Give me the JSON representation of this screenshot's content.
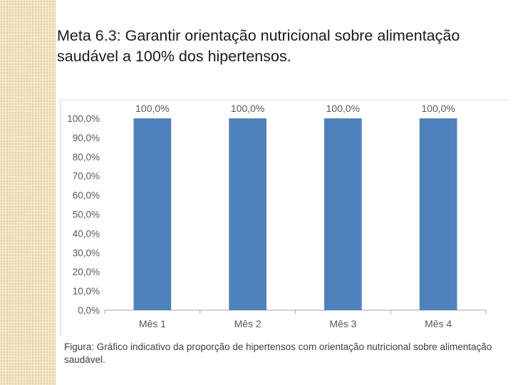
{
  "title": {
    "bold": "Meta 6.3",
    "rest": ": Garantir orientação nutricional sobre alimentação saudável a 100% dos hipertensos."
  },
  "caption": "Figura: Gráfico indicativo da proporção de hipertensos com orientação nutricional sobre alimentação saudável.",
  "colors": {
    "bar": "#4f81bd",
    "axis": "#a6a6a6",
    "text": "#595959"
  },
  "chart_data": {
    "type": "bar",
    "categories": [
      "Mês 1",
      "Mês 2",
      "Mês 3",
      "Mês 4"
    ],
    "values": [
      100.0,
      100.0,
      100.0,
      100.0
    ],
    "value_labels": [
      "100,0%",
      "100,0%",
      "100,0%",
      "100,0%"
    ],
    "y_ticks": [
      "0,0%",
      "10,0%",
      "20,0%",
      "30,0%",
      "40,0%",
      "50,0%",
      "60,0%",
      "70,0%",
      "80,0%",
      "90,0%",
      "100,0%"
    ],
    "ylim": [
      0,
      100
    ],
    "grid": false,
    "legend": "none",
    "title": "",
    "xlabel": "",
    "ylabel": ""
  }
}
